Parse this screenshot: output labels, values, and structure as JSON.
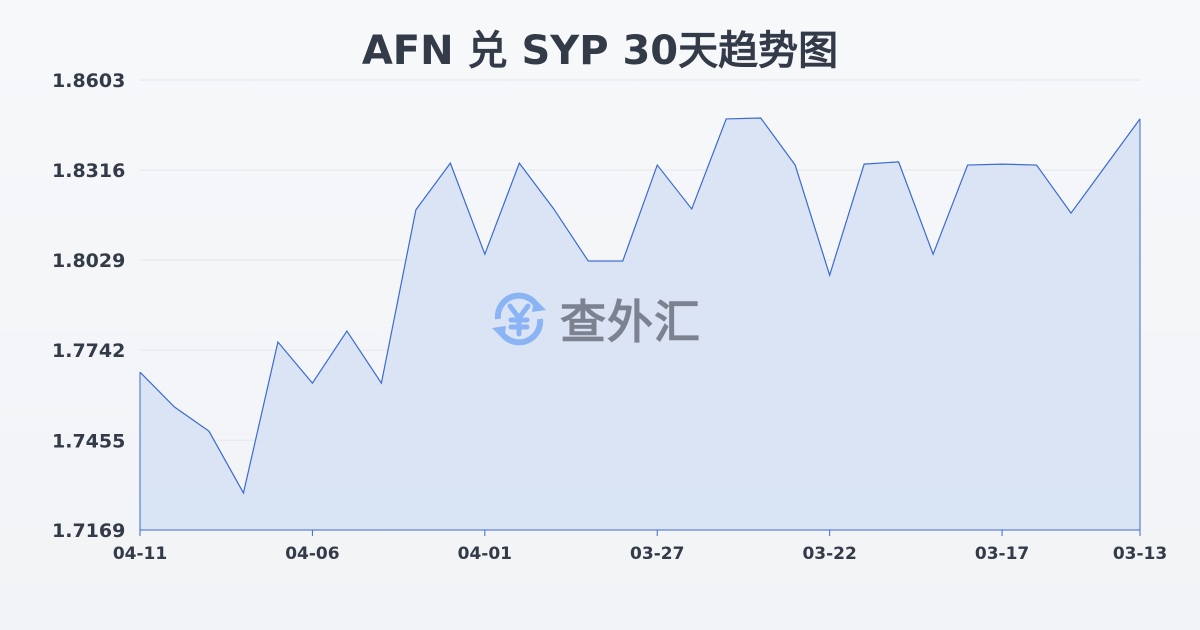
{
  "chart_data": {
    "type": "area",
    "title": "AFN 兑 SYP 30天趋势图",
    "xlabel": "",
    "ylabel": "",
    "ylim": [
      1.7169,
      1.8603
    ],
    "yticks": [
      "1.8603",
      "1.8316",
      "1.8029",
      "1.7742",
      "1.7455",
      "1.7169"
    ],
    "xticks": [
      "04-11",
      "04-06",
      "04-01",
      "03-27",
      "03-22",
      "03-17",
      "03-13"
    ],
    "grid": true,
    "x": [
      "04-11",
      "04-10",
      "04-09",
      "04-08",
      "04-07",
      "04-06",
      "04-05",
      "04-04",
      "04-03",
      "04-02",
      "04-01",
      "03-31",
      "03-30",
      "03-29",
      "03-28",
      "03-27",
      "03-26",
      "03-25",
      "03-24",
      "03-23",
      "03-22",
      "03-21",
      "03-20",
      "03-19",
      "03-18",
      "03-17",
      "03-16",
      "03-15",
      "03-14",
      "03-13"
    ],
    "values": [
      1.7672,
      1.7561,
      1.7484,
      1.7287,
      1.7768,
      1.7637,
      1.7803,
      1.7637,
      1.8189,
      1.8338,
      1.8048,
      1.8338,
      1.8192,
      1.8026,
      1.8026,
      1.8332,
      1.8192,
      1.8479,
      1.8482,
      1.8332,
      1.7981,
      1.8335,
      1.8342,
      1.8048,
      1.8332,
      1.8335,
      1.8332,
      1.8179,
      1.8329,
      1.8479
    ],
    "colors": {
      "line": "#3a6bd0",
      "fill": "#d5e0f5"
    }
  },
  "watermark": {
    "text": "查外汇",
    "icon": "yen-exchange-icon"
  }
}
